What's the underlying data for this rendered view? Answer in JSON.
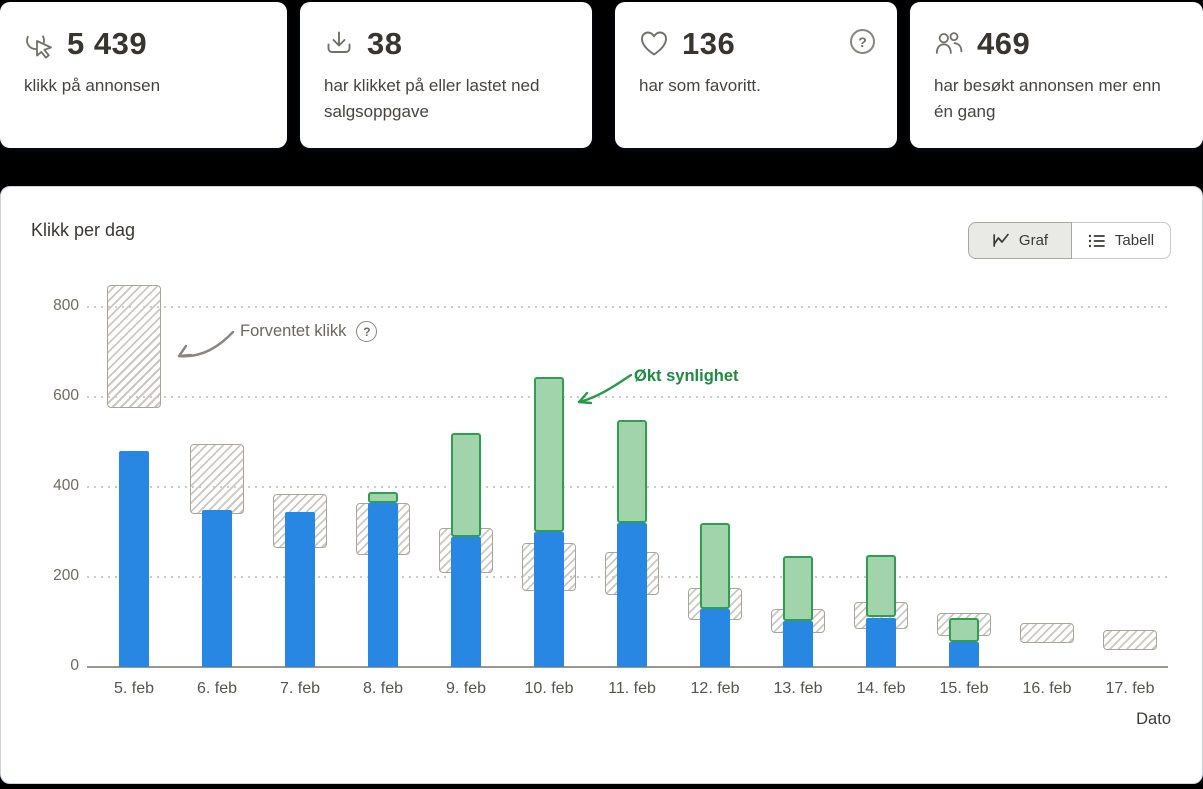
{
  "page": {
    "background": "#000000"
  },
  "glyphs": {
    "help": "?"
  },
  "cards": [
    {
      "icon": "cursor-click-icon",
      "value": "5 439",
      "label": "klikk på annonsen"
    },
    {
      "icon": "download-icon",
      "value": "38",
      "label": "har klikket på eller lastet ned salgsoppgave"
    },
    {
      "icon": "heart-icon",
      "value": "136",
      "label": "har som favoritt.",
      "has_help": true
    },
    {
      "icon": "people-icon",
      "value": "469",
      "label": "har besøkt annonsen mer enn én gang"
    }
  ],
  "chart_panel": {
    "title": "Klikk per dag",
    "view_toggle": {
      "graf_label": "Graf",
      "tabell_label": "Tabell",
      "selected": "Graf"
    },
    "annotations": {
      "expected": "Forventet klikk",
      "boost": "Økt synlighet"
    }
  },
  "chart_data": {
    "type": "bar",
    "title": "Klikk per dag",
    "xlabel": "Dato",
    "ylabel": "",
    "ylim": [
      0,
      900
    ],
    "yticks": [
      0,
      200,
      400,
      600,
      800
    ],
    "grid": "dotted-horizontal",
    "legend_position": "inline-annotations",
    "categories": [
      "5. feb",
      "6. feb",
      "7. feb",
      "8. feb",
      "9. feb",
      "10. feb",
      "11. feb",
      "12. feb",
      "13. feb",
      "14. feb",
      "15. feb",
      "16. feb",
      "17. feb"
    ],
    "series": [
      {
        "name": "Klikk",
        "type": "bar",
        "color": "#2787e2",
        "values": [
          480,
          350,
          345,
          365,
          290,
          300,
          320,
          128,
          103,
          110,
          55,
          0,
          0
        ]
      },
      {
        "name": "Økt synlighet",
        "type": "stacked-bar-top",
        "color": "#a2d4ac",
        "border_color": "#2f9e50",
        "totals": [
          480,
          350,
          345,
          390,
          520,
          645,
          550,
          320,
          247,
          248,
          110,
          0,
          0
        ]
      },
      {
        "name": "Forventet klikk",
        "type": "hatched-range",
        "color": "#ccc8c1",
        "border_color": "#a9a59d",
        "ranges": [
          [
            575,
            850
          ],
          [
            340,
            495
          ],
          [
            265,
            385
          ],
          [
            250,
            365
          ],
          [
            210,
            310
          ],
          [
            170,
            275
          ],
          [
            160,
            255
          ],
          [
            105,
            175
          ],
          [
            75,
            130
          ],
          [
            85,
            145
          ],
          [
            68,
            120
          ],
          [
            54,
            98
          ],
          [
            38,
            82
          ]
        ]
      }
    ]
  }
}
